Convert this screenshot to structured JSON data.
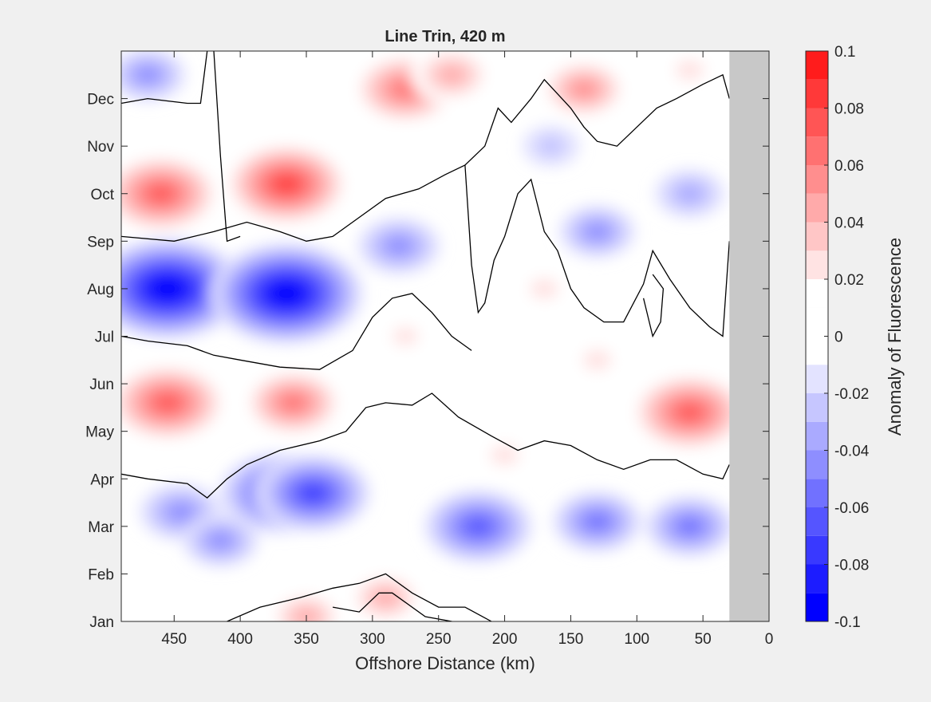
{
  "chart_data": {
    "type": "heatmap",
    "title": "Line Trin, 420 m",
    "xlabel": "Offshore Distance (km)",
    "ylabel": "",
    "xlim": [
      490,
      0
    ],
    "x_ticks": [
      450,
      400,
      350,
      300,
      250,
      200,
      150,
      100,
      50,
      0
    ],
    "y_ticks": [
      "Jan",
      "Feb",
      "Mar",
      "Apr",
      "May",
      "Jun",
      "Jul",
      "Aug",
      "Sep",
      "Oct",
      "Nov",
      "Dec"
    ],
    "y_tick_values": [
      1,
      2,
      3,
      4,
      5,
      6,
      7,
      8,
      9,
      10,
      11,
      12
    ],
    "ylim": [
      1,
      13
    ],
    "no_data_region_km": [
      30,
      0
    ],
    "no_data_color": "#c8c8c8",
    "zero_contour_color": "#000000",
    "colorbar": {
      "label": "Anomaly of Fluorescence",
      "ticks": [
        "0.1",
        "0.08",
        "0.06",
        "0.04",
        "0.02",
        "0",
        "-0.02",
        "-0.04",
        "-0.06",
        "-0.08",
        "-0.1"
      ],
      "tick_values": [
        0.1,
        0.08,
        0.06,
        0.04,
        0.02,
        0,
        -0.02,
        -0.04,
        -0.06,
        -0.08,
        -0.1
      ],
      "levels": [
        -0.1,
        -0.09,
        -0.08,
        -0.07,
        -0.06,
        -0.05,
        -0.04,
        -0.03,
        -0.02,
        -0.01,
        0.01,
        0.02,
        0.03,
        0.04,
        0.05,
        0.06,
        0.07,
        0.08,
        0.09,
        0.1
      ],
      "colors": [
        "#0000ff",
        "#1c1cff",
        "#3939ff",
        "#5555ff",
        "#7171ff",
        "#8e8eff",
        "#aaaaff",
        "#c6c6ff",
        "#e3e3ff",
        "#ffffff",
        "#ffffff",
        "#ffe3e3",
        "#ffc6c6",
        "#ffaaaa",
        "#ff8e8e",
        "#ff7171",
        "#ff5555",
        "#ff3939",
        "#ff1c1c",
        "#ff0000"
      ]
    },
    "features": [
      {
        "x": 460,
        "y": 10.0,
        "value": 0.07
      },
      {
        "x": 365,
        "y": 10.2,
        "value": 0.075
      },
      {
        "x": 275,
        "y": 12.2,
        "value": 0.06
      },
      {
        "x": 240,
        "y": 12.5,
        "value": 0.04
      },
      {
        "x": 140,
        "y": 12.2,
        "value": 0.045
      },
      {
        "x": 60,
        "y": 12.6,
        "value": 0.02
      },
      {
        "x": 470,
        "y": 12.5,
        "value": -0.035
      },
      {
        "x": 455,
        "y": 8.0,
        "value": -0.095
      },
      {
        "x": 365,
        "y": 7.9,
        "value": -0.095
      },
      {
        "x": 280,
        "y": 8.9,
        "value": -0.04
      },
      {
        "x": 130,
        "y": 9.2,
        "value": -0.035
      },
      {
        "x": 60,
        "y": 10.0,
        "value": -0.03
      },
      {
        "x": 165,
        "y": 11.0,
        "value": -0.02
      },
      {
        "x": 455,
        "y": 5.6,
        "value": 0.07
      },
      {
        "x": 360,
        "y": 5.6,
        "value": 0.055
      },
      {
        "x": 60,
        "y": 5.4,
        "value": 0.07
      },
      {
        "x": 275,
        "y": 7.0,
        "value": 0.015
      },
      {
        "x": 130,
        "y": 6.5,
        "value": 0.02
      },
      {
        "x": 370,
        "y": 3.7,
        "value": -0.07
      },
      {
        "x": 345,
        "y": 3.7,
        "value": -0.065
      },
      {
        "x": 220,
        "y": 3.0,
        "value": -0.06
      },
      {
        "x": 445,
        "y": 3.3,
        "value": -0.04
      },
      {
        "x": 415,
        "y": 2.7,
        "value": -0.035
      },
      {
        "x": 130,
        "y": 3.1,
        "value": -0.045
      },
      {
        "x": 60,
        "y": 3.0,
        "value": -0.045
      },
      {
        "x": 290,
        "y": 1.5,
        "value": 0.035
      },
      {
        "x": 350,
        "y": 1.1,
        "value": 0.035
      },
      {
        "x": 200,
        "y": 4.5,
        "value": 0.02
      },
      {
        "x": 170,
        "y": 8.0,
        "value": 0.02
      }
    ]
  }
}
